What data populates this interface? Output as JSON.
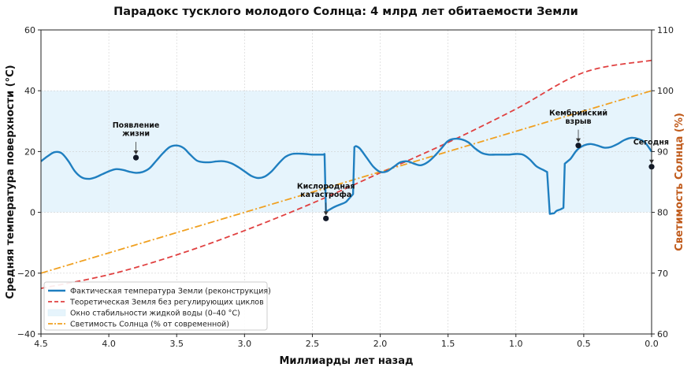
{
  "chart_data": {
    "type": "line",
    "title": "Парадокс тусклого молодого Солнца: 4 млрд лет обитаемости Земли",
    "xlabel": "Миллиарды лет назад",
    "ylabel_left": "Средняя температура поверхности (°C)",
    "ylabel_right": "Светимость Солнца (%)",
    "xlim": [
      4.5,
      0.0
    ],
    "ylim_left": [
      -40,
      60
    ],
    "ylim_right": [
      60,
      110
    ],
    "x_ticks": [
      4.5,
      4.0,
      3.5,
      3.0,
      2.5,
      2.0,
      1.5,
      1.0,
      0.5,
      0.0
    ],
    "x_tick_labels": [
      "4.5",
      "4.0",
      "3.5",
      "3.0",
      "2.5",
      "2.0",
      "1.5",
      "1.0",
      "0.5",
      "0.0"
    ],
    "y_left_ticks": [
      -40,
      -20,
      0,
      20,
      40,
      60
    ],
    "y_left_tick_labels": [
      "−40",
      "−20",
      "0",
      "20",
      "40",
      "60"
    ],
    "y_right_ticks": [
      60,
      70,
      80,
      90,
      100,
      110
    ],
    "y_right_tick_labels": [
      "60",
      "70",
      "80",
      "90",
      "100",
      "110"
    ],
    "grid": true,
    "legend_position": "lower-left",
    "stability_band": {
      "name": "Окно стабильности жидкой воды (0–40 °C)",
      "ymin": 0,
      "ymax": 40,
      "color": "#e6f4fc"
    },
    "series": [
      {
        "name": "Фактическая температура Земли (реконструкция)",
        "axis": "left",
        "color": "#1f7fc0",
        "style": "solid",
        "x": [
          4.5,
          4.45,
          4.4,
          4.35,
          4.3,
          4.25,
          4.2,
          4.15,
          4.1,
          4.05,
          4.0,
          3.95,
          3.9,
          3.85,
          3.8,
          3.75,
          3.7,
          3.65,
          3.6,
          3.55,
          3.5,
          3.45,
          3.4,
          3.35,
          3.3,
          3.25,
          3.2,
          3.15,
          3.1,
          3.05,
          3.0,
          2.95,
          2.9,
          2.85,
          2.8,
          2.75,
          2.7,
          2.65,
          2.6,
          2.55,
          2.5,
          2.45,
          2.42,
          2.41,
          2.4,
          2.35,
          2.3,
          2.25,
          2.2,
          2.19,
          2.18,
          2.15,
          2.1,
          2.05,
          2.0,
          1.95,
          1.9,
          1.85,
          1.8,
          1.75,
          1.7,
          1.65,
          1.6,
          1.55,
          1.5,
          1.45,
          1.4,
          1.35,
          1.3,
          1.25,
          1.2,
          1.15,
          1.1,
          1.05,
          1.0,
          0.95,
          0.9,
          0.85,
          0.8,
          0.78,
          0.77,
          0.75,
          0.72,
          0.7,
          0.67,
          0.65,
          0.64,
          0.6,
          0.55,
          0.5,
          0.45,
          0.4,
          0.35,
          0.3,
          0.25,
          0.2,
          0.15,
          0.1,
          0.05,
          0.0
        ],
        "y": [
          16.8,
          18.5,
          19.8,
          19.5,
          17.0,
          13.5,
          11.5,
          11.0,
          11.5,
          12.5,
          13.5,
          14.2,
          14.0,
          13.4,
          13.0,
          13.3,
          14.5,
          17.0,
          19.5,
          21.5,
          22.0,
          21.2,
          19.0,
          17.0,
          16.5,
          16.5,
          16.8,
          16.8,
          16.2,
          15.0,
          13.5,
          12.0,
          11.3,
          11.8,
          13.5,
          16.0,
          18.2,
          19.2,
          19.3,
          19.2,
          19.0,
          19.0,
          19.0,
          19.2,
          0.2,
          1.5,
          2.5,
          3.5,
          6.0,
          21.5,
          21.8,
          21.0,
          18.0,
          15.0,
          13.3,
          13.5,
          15.0,
          16.5,
          16.8,
          16.0,
          15.5,
          16.5,
          18.5,
          21.0,
          23.5,
          24.2,
          24.0,
          23.0,
          21.0,
          19.5,
          19.0,
          19.0,
          19.0,
          19.0,
          19.2,
          19.0,
          17.5,
          15.2,
          14.0,
          13.5,
          13.3,
          -0.5,
          -0.3,
          0.5,
          1.0,
          1.5,
          16.0,
          17.5,
          20.5,
          22.0,
          22.5,
          22.0,
          21.3,
          21.5,
          22.5,
          23.8,
          24.5,
          24.2,
          23.0,
          20.0
        ]
      },
      {
        "name": "Теоретическая Земля без регулирующих циклов",
        "axis": "left",
        "color": "#e04040",
        "style": "dashed",
        "x": [
          4.5,
          4.0,
          3.5,
          3.0,
          2.5,
          2.0,
          1.5,
          1.0,
          0.5,
          0.0
        ],
        "y": [
          -25,
          -20.5,
          -14,
          -6,
          3,
          13,
          23,
          34,
          46,
          50
        ]
      },
      {
        "name": "Светимость Солнца (% от современной)",
        "axis": "right",
        "color": "#f0a020",
        "style": "dash-dot",
        "x": [
          4.5,
          0.0
        ],
        "y": [
          70,
          100
        ]
      }
    ],
    "events": [
      {
        "label": "Появление жизни",
        "x": 3.8,
        "y": 18,
        "lines": [
          "Появление",
          "жизни"
        ]
      },
      {
        "label": "Кислородная катастрофа",
        "x": 2.4,
        "y": -2,
        "lines": [
          "Кислородная",
          "катастрофа"
        ]
      },
      {
        "label": "Кембрийский взрыв",
        "x": 0.54,
        "y": 22,
        "lines": [
          "Кембрийский",
          "взрыв"
        ]
      },
      {
        "label": "Сегодня",
        "x": 0.0,
        "y": 15,
        "lines": [
          "Сегодня"
        ]
      }
    ]
  }
}
